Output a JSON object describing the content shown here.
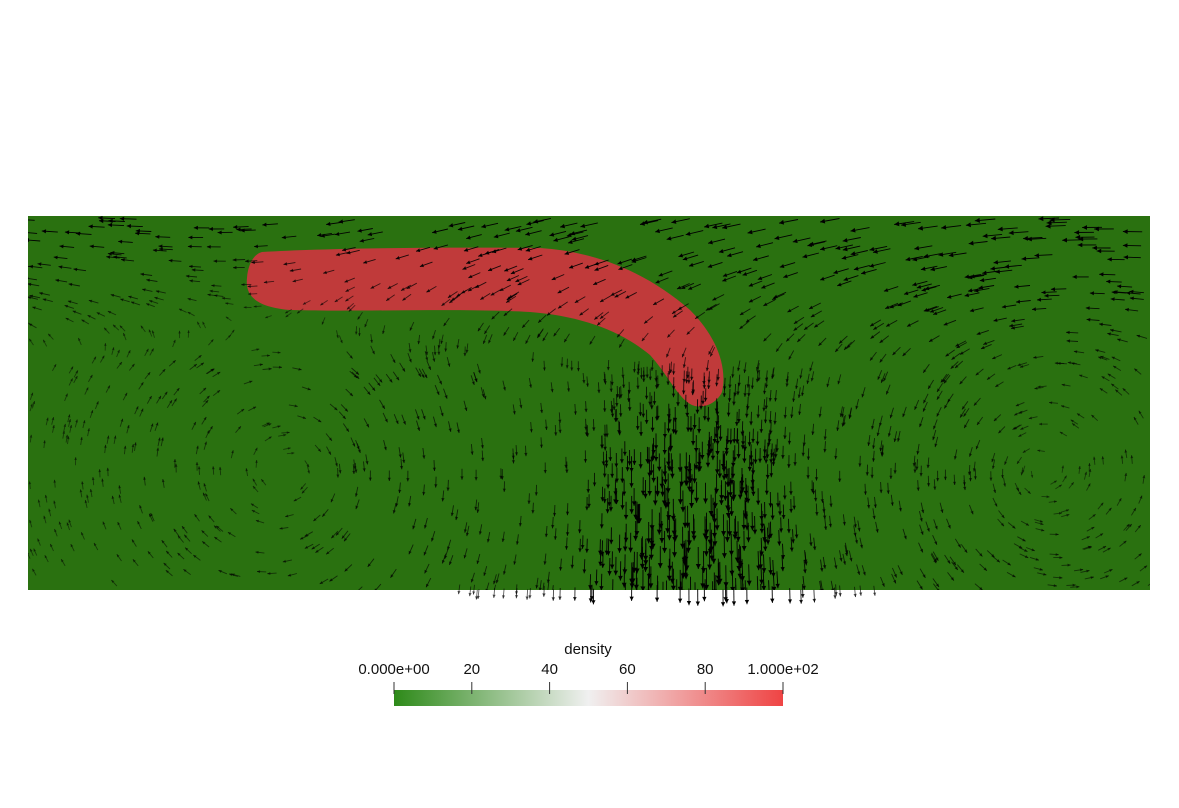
{
  "colorbar": {
    "title": "density",
    "ticks": [
      {
        "value": 0,
        "label": "0.000e+00"
      },
      {
        "value": 20,
        "label": "20"
      },
      {
        "value": 40,
        "label": "40"
      },
      {
        "value": 60,
        "label": "60"
      },
      {
        "value": 80,
        "label": "80"
      },
      {
        "value": 100,
        "label": "1.000e+02"
      }
    ],
    "range": [
      0,
      100
    ],
    "colors": {
      "low": "#2e8a19",
      "mid": "#f0f0f0",
      "high": "#ef4444"
    }
  },
  "field": {
    "background_color": "#2a7110",
    "plume_color": "#c03a3a",
    "arrow_color": "#000000"
  }
}
